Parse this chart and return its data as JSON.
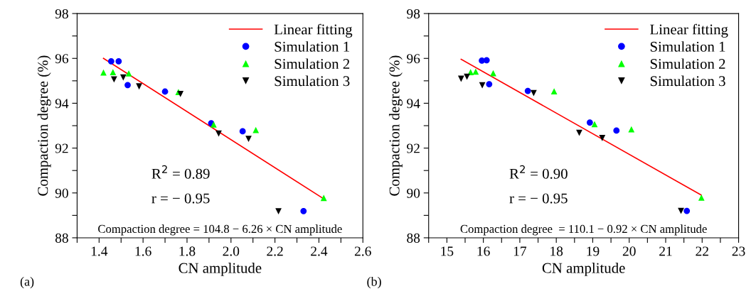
{
  "chart_data": [
    {
      "type": "scatter",
      "xlabel": "CN amplitude",
      "ylabel": "Compaction degree (%)",
      "xlim": [
        1.3,
        2.6
      ],
      "ylim": [
        88,
        98
      ],
      "xticks": [
        {
          "value": 1.3,
          "label": null
        },
        1.4,
        {
          "value": 1.5,
          "label": null
        },
        1.6,
        {
          "value": 1.7,
          "label": null
        },
        1.8,
        {
          "value": 1.9,
          "label": null
        },
        {
          "value": 2.0,
          "label": "2.0"
        },
        {
          "value": 2.1,
          "label": null
        },
        2.2,
        {
          "value": 2.3,
          "label": null
        },
        2.4,
        {
          "value": 2.5,
          "label": null
        },
        2.6
      ],
      "yticks": [
        88,
        {
          "value": 89,
          "label": null
        },
        90,
        {
          "value": 91,
          "label": null
        },
        92,
        {
          "value": 93,
          "label": null
        },
        94,
        {
          "value": 95,
          "label": null
        },
        96,
        {
          "value": 97,
          "label": null
        },
        98
      ],
      "legend": "top right",
      "grid": false,
      "annotations": [
        "(a)",
        "R$^{2}$ = 0.89",
        "r = − 0.95",
        "Compaction degree = 104.8 − 6.26 × CN amplitude"
      ],
      "series": [
        {
          "name": "Linear fitting",
          "type": "line",
          "line_style": "solid",
          "color": "#ff0000",
          "x": [
            1.42,
            2.42
          ],
          "values": [
            96.0,
            89.75
          ]
        },
        {
          "name": "Simulation 1",
          "marker": "circle",
          "color": "#0000ff",
          "x": [
            1.455,
            1.489,
            1.53,
            1.7,
            1.91,
            2.053,
            2.33
          ],
          "values": [
            95.87,
            95.87,
            94.81,
            94.52,
            93.11,
            92.75,
            89.19
          ]
        },
        {
          "name": "Simulation 2",
          "marker": "triangle",
          "color": "#00ff00",
          "x": [
            1.42,
            1.463,
            1.535,
            1.761,
            1.921,
            2.113,
            2.422
          ],
          "values": [
            95.37,
            95.39,
            95.33,
            94.5,
            93.05,
            92.81,
            89.78
          ]
        },
        {
          "name": "Simulation 3",
          "marker": "triangle_down",
          "color": "#000000",
          "x": [
            1.468,
            1.51,
            1.582,
            1.77,
            1.944,
            2.08,
            2.216
          ],
          "values": [
            95.06,
            95.15,
            94.75,
            94.41,
            92.65,
            92.41,
            89.18
          ]
        }
      ]
    },
    {
      "type": "scatter",
      "xlabel": "CN amplitude",
      "ylabel": "Compaction degree (%)",
      "xlim": [
        14.5,
        23
      ],
      "ylim": [
        88,
        98
      ],
      "xticks": [
        {
          "value": 14.5,
          "label": null
        },
        15,
        {
          "value": 15.5,
          "label": null
        },
        16,
        {
          "value": 16.5,
          "label": null
        },
        17,
        {
          "value": 17.5,
          "label": null
        },
        18,
        {
          "value": 18.5,
          "label": null
        },
        19,
        {
          "value": 19.5,
          "label": null
        },
        20,
        {
          "value": 20.5,
          "label": null
        },
        21,
        {
          "value": 21.5,
          "label": null
        },
        22,
        {
          "value": 22.5,
          "label": null
        },
        23
      ],
      "yticks": [
        88,
        {
          "value": 89,
          "label": null
        },
        90,
        {
          "value": 91,
          "label": null
        },
        92,
        {
          "value": 93,
          "label": null
        },
        94,
        {
          "value": 95,
          "label": null
        },
        96,
        {
          "value": 97,
          "label": null
        },
        98
      ],
      "legend": "top right",
      "grid": false,
      "annotations": [
        "(b)",
        "R$^{2}$ = 0.90",
        "r = − 0.95",
        "Compaction degree  = 110.1 − 0.92 × CN amplitude"
      ],
      "series": [
        {
          "name": "Linear fitting",
          "type": "line",
          "line_style": "solid",
          "color": "#ff0000",
          "x": [
            15.39,
            21.97
          ],
          "values": [
            95.96,
            89.91
          ]
        },
        {
          "name": "Simulation 1",
          "marker": "circle",
          "color": "#0000ff",
          "x": [
            15.96,
            16.09,
            16.16,
            17.22,
            18.92,
            19.65,
            21.58
          ],
          "values": [
            95.9,
            95.92,
            94.85,
            94.55,
            93.14,
            92.78,
            89.2
          ]
        },
        {
          "name": "Simulation 2",
          "marker": "triangle",
          "color": "#00ff00",
          "x": [
            15.65,
            15.79,
            16.27,
            17.94,
            19.05,
            20.06,
            21.98
          ],
          "values": [
            95.39,
            95.41,
            95.34,
            94.53,
            93.07,
            92.84,
            89.79
          ]
        },
        {
          "name": "Simulation 3",
          "marker": "triangle_down",
          "color": "#000000",
          "x": [
            15.39,
            15.55,
            15.97,
            17.38,
            18.63,
            19.26,
            21.42
          ],
          "values": [
            95.09,
            95.18,
            94.8,
            94.45,
            92.68,
            92.45,
            89.2
          ]
        }
      ]
    }
  ]
}
